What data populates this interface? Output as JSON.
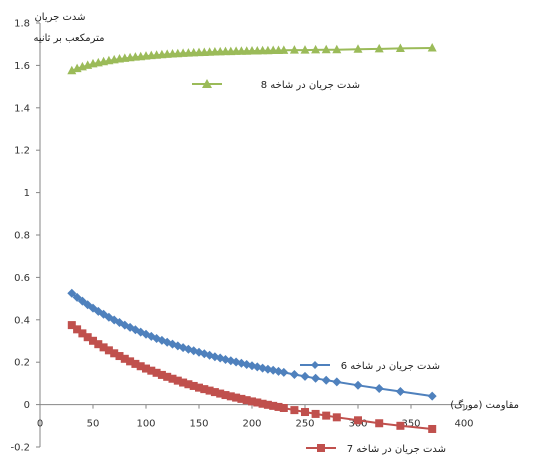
{
  "chart_data": {
    "type": "scatter",
    "ylabel": "شدت جریان",
    "yunit": "مترمکعب بر ثانیه",
    "xlabel": "مقاومت (مورگ)",
    "xlim": [
      0,
      400
    ],
    "ylim": [
      -0.2,
      1.8
    ],
    "xticks": [
      0,
      50,
      100,
      150,
      200,
      250,
      300,
      350,
      400
    ],
    "yticks": [
      -0.2,
      0,
      0.2,
      0.4,
      0.6,
      0.8,
      1,
      1.2,
      1.4,
      1.6,
      1.8
    ],
    "grid": false,
    "series": [
      {
        "name": "شدت جریان در شاخه 8",
        "color": "#9bbb59",
        "marker": "triangle",
        "x": [
          30,
          35,
          40,
          45,
          50,
          55,
          60,
          65,
          70,
          75,
          80,
          85,
          90,
          95,
          100,
          105,
          110,
          115,
          120,
          125,
          130,
          135,
          140,
          145,
          150,
          155,
          160,
          165,
          170,
          175,
          180,
          185,
          190,
          195,
          200,
          205,
          210,
          215,
          220,
          225,
          230,
          240,
          250,
          260,
          270,
          280,
          300,
          320,
          340,
          370
        ],
        "y": [
          1.575,
          1.585,
          1.593,
          1.6,
          1.607,
          1.612,
          1.617,
          1.622,
          1.626,
          1.63,
          1.633,
          1.636,
          1.639,
          1.641,
          1.644,
          1.646,
          1.648,
          1.65,
          1.652,
          1.654,
          1.655,
          1.657,
          1.658,
          1.659,
          1.66,
          1.661,
          1.662,
          1.663,
          1.664,
          1.665,
          1.665,
          1.666,
          1.667,
          1.667,
          1.668,
          1.668,
          1.669,
          1.669,
          1.67,
          1.67,
          1.671,
          1.672,
          1.672,
          1.673,
          1.674,
          1.674,
          1.676,
          1.678,
          1.68,
          1.682
        ]
      },
      {
        "name": "شدت جریان در شاخه 6",
        "color": "#4f81bd",
        "marker": "diamond",
        "x": [
          30,
          35,
          40,
          45,
          50,
          55,
          60,
          65,
          70,
          75,
          80,
          85,
          90,
          95,
          100,
          105,
          110,
          115,
          120,
          125,
          130,
          135,
          140,
          145,
          150,
          155,
          160,
          165,
          170,
          175,
          180,
          185,
          190,
          195,
          200,
          205,
          210,
          215,
          220,
          225,
          230,
          240,
          250,
          260,
          270,
          280,
          300,
          320,
          340,
          370
        ],
        "y": [
          0.525,
          0.506,
          0.488,
          0.471,
          0.455,
          0.44,
          0.426,
          0.412,
          0.399,
          0.387,
          0.375,
          0.364,
          0.353,
          0.342,
          0.332,
          0.322,
          0.312,
          0.303,
          0.294,
          0.285,
          0.277,
          0.269,
          0.261,
          0.254,
          0.247,
          0.24,
          0.233,
          0.226,
          0.22,
          0.213,
          0.207,
          0.201,
          0.195,
          0.189,
          0.183,
          0.178,
          0.172,
          0.167,
          0.162,
          0.157,
          0.152,
          0.142,
          0.133,
          0.124,
          0.115,
          0.107,
          0.091,
          0.076,
          0.062,
          0.04
        ]
      },
      {
        "name": "شدت جریان در شاخه 7",
        "color": "#c0504d",
        "marker": "square",
        "x": [
          30,
          35,
          40,
          45,
          50,
          55,
          60,
          65,
          70,
          75,
          80,
          85,
          90,
          95,
          100,
          105,
          110,
          115,
          120,
          125,
          130,
          135,
          140,
          145,
          150,
          155,
          160,
          165,
          170,
          175,
          180,
          185,
          190,
          195,
          200,
          205,
          210,
          215,
          220,
          225,
          230,
          240,
          250,
          260,
          270,
          280,
          300,
          320,
          340,
          370
        ],
        "y": [
          0.375,
          0.355,
          0.336,
          0.318,
          0.301,
          0.285,
          0.27,
          0.256,
          0.242,
          0.229,
          0.216,
          0.204,
          0.192,
          0.181,
          0.17,
          0.16,
          0.15,
          0.14,
          0.131,
          0.122,
          0.113,
          0.104,
          0.096,
          0.088,
          0.08,
          0.073,
          0.066,
          0.059,
          0.052,
          0.045,
          0.039,
          0.033,
          0.027,
          0.021,
          0.015,
          0.01,
          0.004,
          -0.001,
          -0.006,
          -0.011,
          -0.016,
          -0.026,
          -0.035,
          -0.044,
          -0.052,
          -0.06,
          -0.074,
          -0.088,
          -0.1,
          -0.115
        ]
      }
    ]
  }
}
